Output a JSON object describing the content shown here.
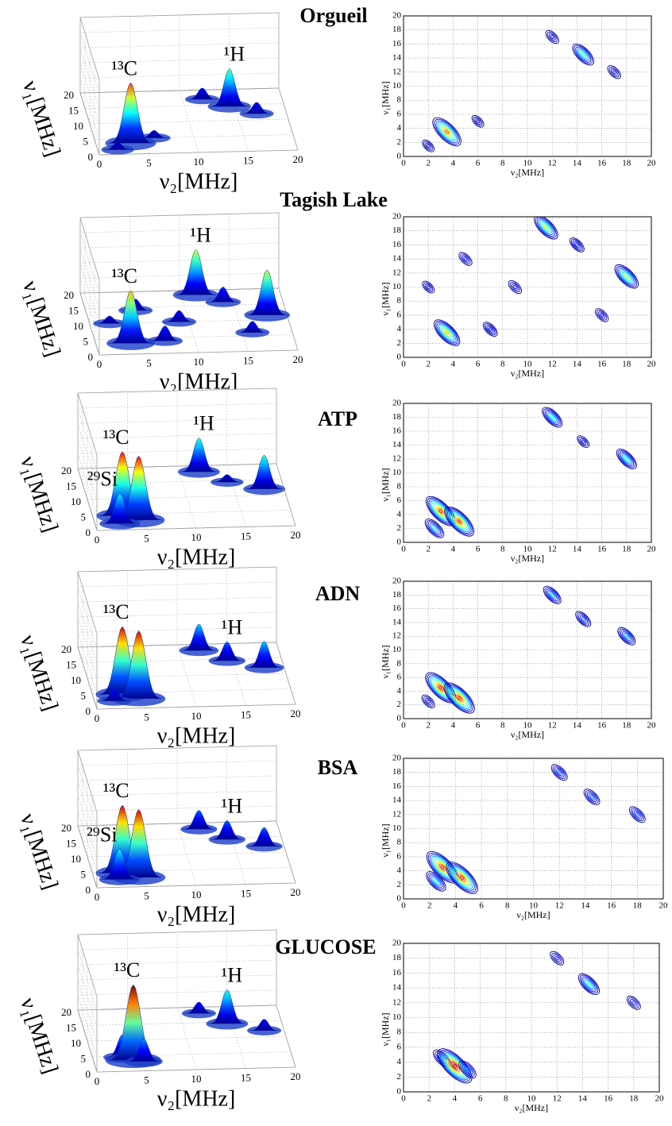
{
  "chart_data": [
    {
      "type": "surface3d",
      "xlabel": "ν₂[MHz]",
      "ylabel": "ν₁[MHz]",
      "xlim": [
        0,
        20
      ],
      "ylim": [
        0,
        20
      ],
      "zlim": [
        0,
        1
      ],
      "xticks": [
        0,
        5,
        10,
        15,
        20
      ],
      "yticks": [
        0,
        5,
        10,
        15,
        20
      ],
      "grid": true,
      "peaks": {
        "x": [
          3.5,
          14.5,
          12,
          17,
          2,
          6
        ],
        "y": [
          3.5,
          14.5,
          17,
          12,
          1.5,
          5
        ],
        "z": [
          0.8,
          0.5,
          0.15,
          0.15,
          0.1,
          0.1
        ],
        "labels": [
          "¹³C",
          "¹H",
          null,
          null,
          null,
          null
        ]
      }
    },
    {
      "type": "contour",
      "title": "Orgueil",
      "xlabel": "ν₂[MHz]",
      "ylabel": "ν₁[MHz]",
      "xlim": [
        0,
        20
      ],
      "ylim": [
        0,
        20
      ],
      "xticks": [
        0,
        2,
        4,
        6,
        8,
        10,
        12,
        14,
        16,
        18,
        20
      ],
      "yticks": [
        0,
        2,
        4,
        6,
        8,
        10,
        12,
        14,
        16,
        18,
        20
      ],
      "grid": true,
      "peaks": {
        "x": [
          3.5,
          14.5,
          12,
          17,
          2,
          6
        ],
        "y": [
          3.5,
          14.5,
          17,
          12,
          1.5,
          5
        ],
        "z": [
          0.8,
          0.5,
          0.15,
          0.15,
          0.1,
          0.1
        ]
      }
    },
    {
      "type": "surface3d",
      "xlabel": "ν₂[MHz]",
      "ylabel": "ν₁[MHz]",
      "xlim": [
        0,
        20
      ],
      "ylim": [
        0,
        20
      ],
      "zlim": [
        0,
        1
      ],
      "xticks": [
        0,
        5,
        10,
        15,
        20
      ],
      "yticks": [
        0,
        5,
        10,
        15,
        20
      ],
      "grid": true,
      "peaks": {
        "x": [
          3.5,
          11.5,
          18,
          7,
          5,
          16,
          9,
          14,
          2
        ],
        "y": [
          3.5,
          18.5,
          11.5,
          4,
          14,
          6,
          10,
          16,
          10
        ],
        "z": [
          0.7,
          0.6,
          0.6,
          0.2,
          0.15,
          0.15,
          0.15,
          0.2,
          0.1
        ],
        "labels": [
          "¹³C",
          "¹H",
          null,
          null,
          null,
          null,
          null,
          null,
          null
        ]
      }
    },
    {
      "type": "contour",
      "title": "Tagish Lake",
      "xlabel": "ν₂[MHz]",
      "ylabel": "ν₁[MHz]",
      "xlim": [
        0,
        20
      ],
      "ylim": [
        0,
        20
      ],
      "xticks": [
        0,
        2,
        4,
        6,
        8,
        10,
        12,
        14,
        16,
        18,
        20
      ],
      "yticks": [
        0,
        2,
        4,
        6,
        8,
        10,
        12,
        14,
        16,
        18,
        20
      ],
      "grid": true,
      "peaks": {
        "x": [
          3.5,
          11.5,
          18,
          7,
          5,
          16,
          9,
          14,
          2
        ],
        "y": [
          3.5,
          18.5,
          11.5,
          4,
          14,
          6,
          10,
          16,
          10
        ],
        "z": [
          0.7,
          0.6,
          0.6,
          0.2,
          0.15,
          0.15,
          0.15,
          0.2,
          0.1
        ]
      }
    },
    {
      "type": "surface3d",
      "xlabel": "ν₂[MHz]",
      "ylabel": "ν₁[MHz]",
      "xlim": [
        0,
        20
      ],
      "ylim": [
        0,
        20
      ],
      "zlim": [
        0,
        1
      ],
      "xticks": [
        0,
        5,
        10,
        15,
        20
      ],
      "yticks": [
        0,
        5,
        10,
        15,
        20
      ],
      "grid": true,
      "peaks": {
        "x": [
          2.5,
          3,
          4.5,
          12,
          18,
          14.5
        ],
        "y": [
          2,
          4.5,
          3,
          18,
          12,
          14.5
        ],
        "z": [
          0.4,
          0.85,
          0.85,
          0.45,
          0.45,
          0.1
        ],
        "labels": [
          "²⁹Si",
          "¹³C",
          null,
          "¹H",
          null,
          null
        ]
      }
    },
    {
      "type": "contour",
      "title": "ATP",
      "xlabel": "ν₂[MHz]",
      "ylabel": "ν₁[MHz]",
      "xlim": [
        0,
        20
      ],
      "ylim": [
        0,
        20
      ],
      "xticks": [
        0,
        2,
        4,
        6,
        8,
        10,
        12,
        14,
        16,
        18,
        20
      ],
      "yticks": [
        0,
        2,
        4,
        6,
        8,
        10,
        12,
        14,
        16,
        18,
        20
      ],
      "grid": true,
      "peaks": {
        "x": [
          2.5,
          3,
          4.5,
          12,
          18,
          14.5
        ],
        "y": [
          2,
          4.5,
          3,
          18,
          12,
          14.5
        ],
        "z": [
          0.4,
          0.85,
          0.85,
          0.45,
          0.45,
          0.1
        ]
      }
    },
    {
      "type": "surface3d",
      "xlabel": "ν₂[MHz]",
      "ylabel": "ν₁[MHz]",
      "xlim": [
        0,
        20
      ],
      "ylim": [
        0,
        20
      ],
      "zlim": [
        0,
        1
      ],
      "xticks": [
        0,
        5,
        10,
        15,
        20
      ],
      "yticks": [
        0,
        5,
        10,
        15,
        20
      ],
      "grid": true,
      "peaks": {
        "x": [
          3,
          4.5,
          12,
          14.5,
          18,
          2
        ],
        "y": [
          4.5,
          3,
          18,
          14.5,
          12,
          2.5
        ],
        "z": [
          0.9,
          0.9,
          0.35,
          0.25,
          0.35,
          0.15
        ],
        "labels": [
          "¹³C",
          null,
          null,
          "¹H",
          null,
          null
        ]
      }
    },
    {
      "type": "contour",
      "title": "ADN",
      "xlabel": "ν₂[MHz]",
      "ylabel": "ν₁[MHz]",
      "xlim": [
        0,
        20
      ],
      "ylim": [
        0,
        20
      ],
      "xticks": [
        0,
        2,
        4,
        6,
        8,
        10,
        12,
        14,
        16,
        18,
        20
      ],
      "yticks": [
        0,
        2,
        4,
        6,
        8,
        10,
        12,
        14,
        16,
        18,
        20
      ],
      "grid": true,
      "peaks": {
        "x": [
          3,
          4.5,
          12,
          14.5,
          18,
          2
        ],
        "y": [
          4.5,
          3,
          18,
          14.5,
          12,
          2.5
        ],
        "z": [
          0.9,
          0.9,
          0.35,
          0.25,
          0.35,
          0.15
        ]
      }
    },
    {
      "type": "surface3d",
      "xlabel": "ν₂[MHz]",
      "ylabel": "ν₁[MHz]",
      "xlim": [
        0,
        20
      ],
      "ylim": [
        0,
        20
      ],
      "zlim": [
        0,
        1
      ],
      "xticks": [
        0,
        5,
        10,
        15,
        20
      ],
      "yticks": [
        0,
        5,
        10,
        15,
        20
      ],
      "grid": true,
      "peaks": {
        "x": [
          2.5,
          3,
          4.5,
          12,
          14.5,
          18
        ],
        "y": [
          2.5,
          4.5,
          3,
          18,
          14.5,
          12
        ],
        "z": [
          0.4,
          0.9,
          0.9,
          0.25,
          0.25,
          0.25
        ],
        "labels": [
          "²⁹Si",
          "¹³C",
          null,
          null,
          "¹H",
          null
        ]
      }
    },
    {
      "type": "contour",
      "title": "BSA",
      "xlabel": "ν₂[MHz]",
      "ylabel": "ν₁[MHz]",
      "xlim": [
        0,
        20
      ],
      "ylim": [
        0,
        20
      ],
      "xticks": [
        0,
        2,
        4,
        6,
        8,
        10,
        12,
        14,
        16,
        18,
        20
      ],
      "yticks": [
        0,
        2,
        4,
        6,
        8,
        10,
        12,
        14,
        16,
        18,
        20
      ],
      "grid": true,
      "peaks": {
        "x": [
          2.5,
          3,
          4.5,
          12,
          14.5,
          18
        ],
        "y": [
          2.5,
          4.5,
          3,
          18,
          14.5,
          12
        ],
        "z": [
          0.4,
          0.9,
          0.9,
          0.25,
          0.25,
          0.25
        ]
      }
    },
    {
      "type": "surface3d",
      "xlabel": "ν₂[MHz]",
      "ylabel": "ν₁[MHz]",
      "xlim": [
        0,
        20
      ],
      "ylim": [
        0,
        20
      ],
      "zlim": [
        0,
        1
      ],
      "xticks": [
        0,
        5,
        10,
        15,
        20
      ],
      "yticks": [
        0,
        5,
        10,
        15,
        20
      ],
      "grid": true,
      "peaks": {
        "x": [
          3,
          4,
          5,
          12,
          14.5,
          18
        ],
        "y": [
          4.5,
          3.5,
          3,
          18,
          14.5,
          12
        ],
        "z": [
          0.3,
          1.0,
          0.3,
          0.15,
          0.45,
          0.15
        ],
        "labels": [
          null,
          "¹³C",
          null,
          null,
          "¹H",
          null
        ]
      }
    },
    {
      "type": "contour",
      "title": "GLUCOSE",
      "xlabel": "ν₂[MHz]",
      "ylabel": "ν₁[MHz]",
      "xlim": [
        0,
        20
      ],
      "ylim": [
        0,
        20
      ],
      "xticks": [
        0,
        2,
        4,
        6,
        8,
        10,
        12,
        14,
        16,
        18,
        20
      ],
      "yticks": [
        0,
        2,
        4,
        6,
        8,
        10,
        12,
        14,
        16,
        18,
        20
      ],
      "grid": true,
      "peaks": {
        "x": [
          3,
          4,
          5,
          12,
          14.5,
          18
        ],
        "y": [
          4.5,
          3.5,
          3,
          18,
          14.5,
          12
        ],
        "z": [
          0.3,
          1.0,
          0.3,
          0.15,
          0.45,
          0.15
        ]
      }
    }
  ]
}
